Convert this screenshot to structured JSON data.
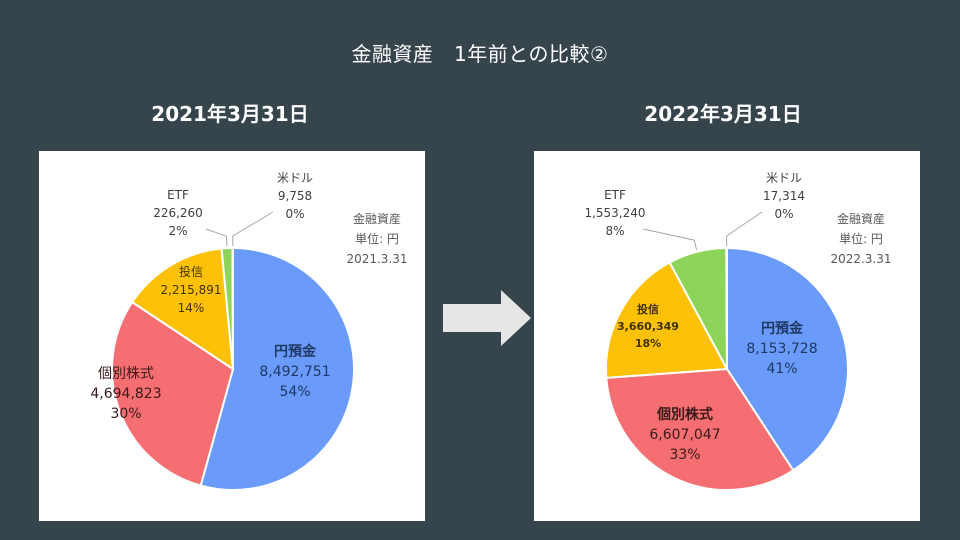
{
  "title": "金融資産　1年前との比較②",
  "left_date": "2021年3月31日",
  "right_date": "2022年3月31日",
  "chart_data": [
    {
      "type": "pie",
      "note": [
        "金融資産",
        "単位: 円",
        "2021.3.31"
      ],
      "slices": [
        {
          "label": "円預金",
          "value": "8,492,751",
          "percent": "54%",
          "amount": 8492751,
          "color": "#6a9bfa"
        },
        {
          "label": "個別株式",
          "value": "4,694,823",
          "percent": "30%",
          "amount": 4694823,
          "color": "#f56e72"
        },
        {
          "label": "投信",
          "value": "2,215,891",
          "percent": "14%",
          "amount": 2215891,
          "color": "#fdc108"
        },
        {
          "label": "ETF",
          "value": "226,260",
          "percent": "2%",
          "amount": 226260,
          "color": "#8fd45a"
        },
        {
          "label": "米ドル",
          "value": "9,758",
          "percent": "0%",
          "amount": 9758,
          "color": "#8a9399"
        }
      ]
    },
    {
      "type": "pie",
      "note": [
        "金融資産",
        "単位: 円",
        "2022.3.31"
      ],
      "slices": [
        {
          "label": "円預金",
          "value": "8,153,728",
          "percent": "41%",
          "amount": 8153728,
          "color": "#6a9bfa"
        },
        {
          "label": "個別株式",
          "value": "6,607,047",
          "percent": "33%",
          "amount": 6607047,
          "color": "#f56e72"
        },
        {
          "label": "投信",
          "value": "3,660,349",
          "percent": "18%",
          "amount": 3660349,
          "color": "#fdc108"
        },
        {
          "label": "ETF",
          "value": "1,553,240",
          "percent": "8%",
          "amount": 1553240,
          "color": "#8fd45a"
        },
        {
          "label": "米ドル",
          "value": "17,314",
          "percent": "0%",
          "amount": 17314,
          "color": "#8a9399"
        }
      ]
    }
  ]
}
